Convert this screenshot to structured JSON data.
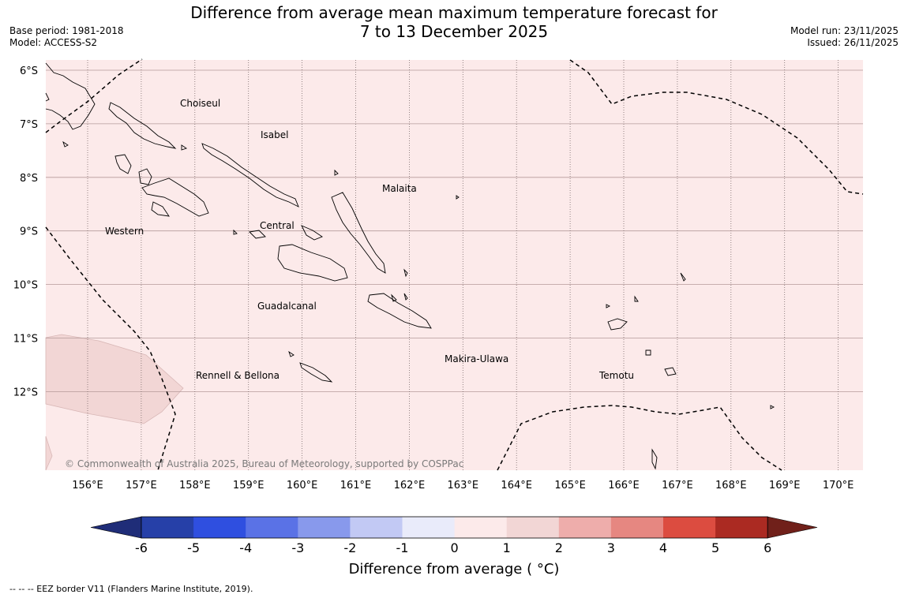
{
  "title_line1": "Difference from average mean maximum temperature forecast for",
  "title_line2": "7 to 13 December 2025",
  "meta_left": {
    "base_period": "Base period: 1981-2018",
    "model": "Model: ACCESS-S2"
  },
  "meta_right": {
    "model_run": "Model run: 23/11/2025",
    "issued": "Issued: 26/11/2025"
  },
  "lat_labels": [
    "6°S",
    "7°S",
    "8°S",
    "9°S",
    "10°S",
    "11°S",
    "12°S"
  ],
  "lon_labels": [
    "156°E",
    "157°E",
    "158°E",
    "159°E",
    "160°E",
    "161°E",
    "162°E",
    "163°E",
    "164°E",
    "165°E",
    "166°E",
    "167°E",
    "168°E",
    "169°E",
    "170°E"
  ],
  "regions": {
    "choiseul": "Choiseul",
    "isabel": "Isabel",
    "malaita": "Malaita",
    "central": "Central",
    "western": "Western",
    "guadalcanal": "Guadalcanal",
    "makira": "Makira-Ulawa",
    "rennell": "Rennell & Bellona",
    "temotu": "Temotu"
  },
  "copyright": "© Commonwealth of Australia 2025, Bureau of Meteorology, supported by COSPPac",
  "colorbar": {
    "ticks": [
      "-6",
      "-5",
      "-4",
      "-3",
      "-2",
      "-1",
      "0",
      "1",
      "2",
      "3",
      "4",
      "5",
      "6"
    ],
    "colors": [
      "#2640a8",
      "#2f4fe0",
      "#5a72e6",
      "#8899ec",
      "#c2c9f4",
      "#e9ebfa",
      "#fceaea",
      "#f2d6d5",
      "#eeadab",
      "#e68781",
      "#dc4c40",
      "#ab2a22"
    ],
    "extend_low": "#1f2d78",
    "extend_high": "#70201a",
    "label": "Difference from average ( °C)"
  },
  "map_colors": {
    "band_0_1": "#fceaea",
    "band_1_2": "#f2d6d5"
  },
  "footnote": "--  --  -- EEZ border V11 (Flanders Marine Institute, 2019)."
}
